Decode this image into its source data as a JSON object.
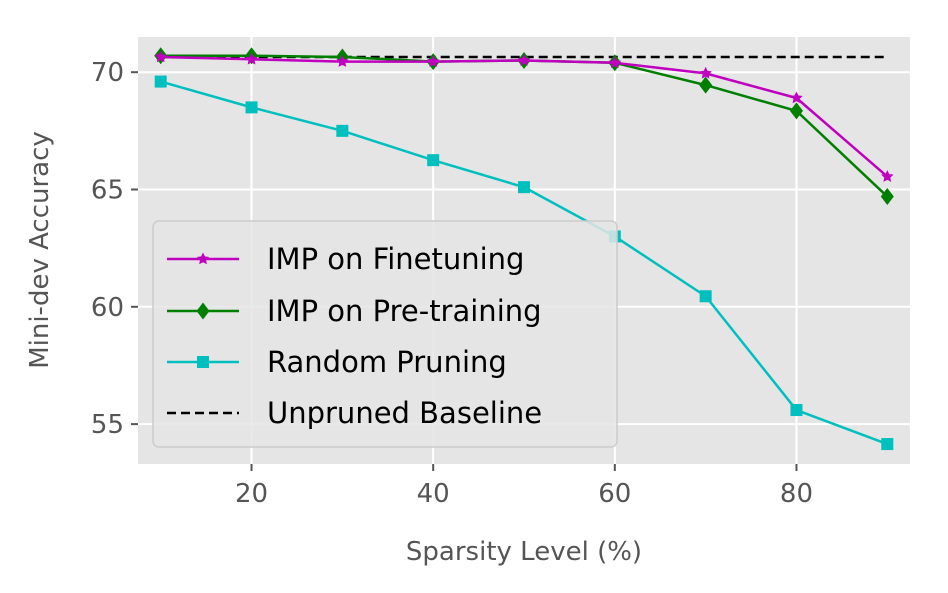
{
  "chart_data": {
    "type": "line",
    "title": "",
    "xlabel": "Sparsity Level (%)",
    "ylabel": "Mini-dev Accuracy",
    "xlim": [
      7.5,
      92.5
    ],
    "ylim": [
      53.3,
      71.5
    ],
    "xticks": [
      20,
      40,
      60,
      80
    ],
    "yticks": [
      55,
      60,
      65,
      70
    ],
    "grid": true,
    "legend_position": "lower-left",
    "x": [
      10,
      20,
      30,
      40,
      50,
      60,
      70,
      80,
      90
    ],
    "series": [
      {
        "name": "IMP on Finetuning",
        "color": "#bf00bf",
        "marker": "star",
        "values": [
          70.65,
          70.55,
          70.45,
          70.45,
          70.5,
          70.4,
          69.95,
          68.9,
          65.55
        ]
      },
      {
        "name": "IMP on Pre-training",
        "color": "#007f00",
        "marker": "diamond",
        "values": [
          70.7,
          70.7,
          70.65,
          70.45,
          70.5,
          70.4,
          69.45,
          68.35,
          64.7
        ]
      },
      {
        "name": "Random Pruning",
        "color": "#00bfbf",
        "marker": "square",
        "values": [
          69.6,
          68.5,
          67.5,
          66.25,
          65.1,
          63.0,
          60.45,
          55.6,
          54.15
        ]
      },
      {
        "name": "Unpruned Baseline",
        "color": "#000000",
        "marker": "none",
        "dashed": true,
        "x": [
          10,
          90
        ],
        "values": [
          70.65,
          70.65
        ]
      }
    ]
  }
}
